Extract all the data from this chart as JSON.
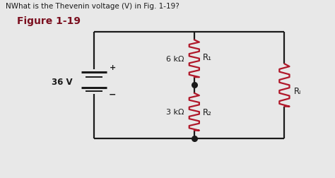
{
  "title": "NWhat is the Thevenin voltage (V) in Fig. 1-19?",
  "figure_label": "Figure 1-19",
  "voltage_label": "36 V",
  "r1_label": "6 kΩ",
  "r1_name": "R₁",
  "r2_label": "3 kΩ",
  "r2_name": "R₂",
  "rl_name": "Rₗ",
  "bg_color": "#e8e8e8",
  "wire_color": "#1a1a1a",
  "resistor_color": "#b0182a",
  "text_color": "#1a1a1a",
  "title_color": "#1a1a1a",
  "fig_label_color": "#7b1020",
  "bat_color": "#1a1a1a"
}
